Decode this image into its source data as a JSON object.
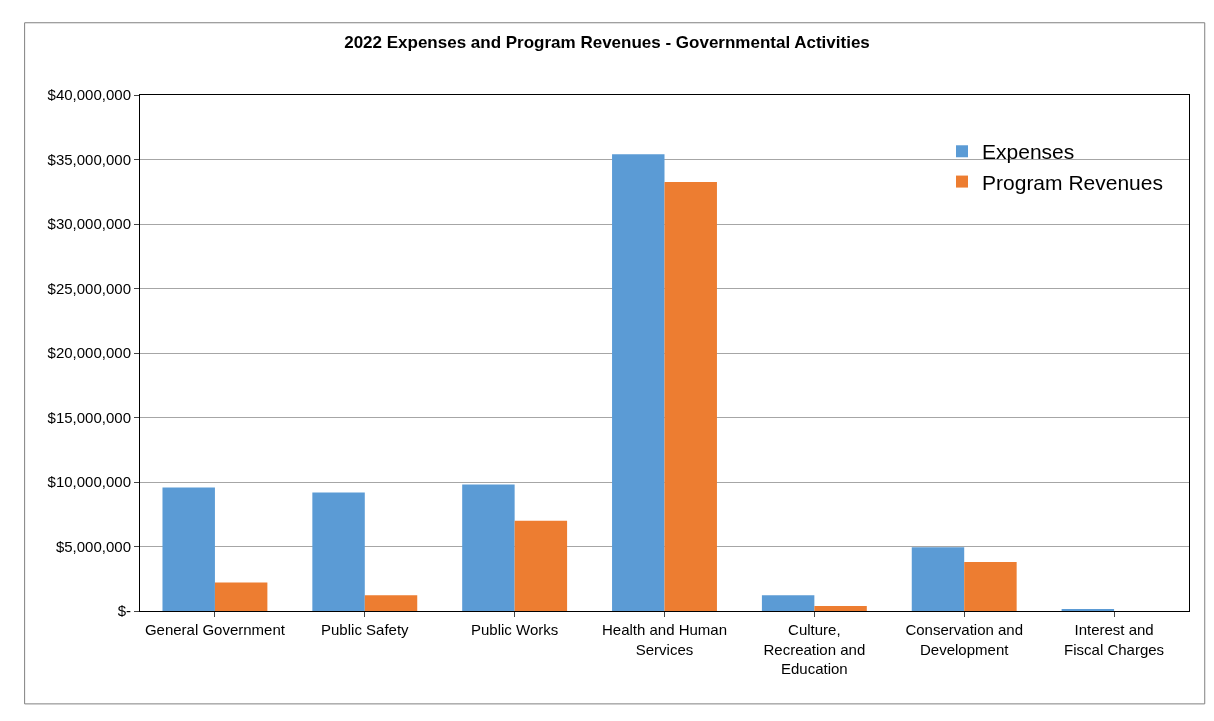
{
  "chart_data": {
    "type": "bar",
    "title": "2022 Expenses and Program Revenues - Governmental Activities",
    "categories": [
      "General Government",
      "Public Safety",
      "Public Works",
      "Health and Human Services",
      "Culture, Recreation and Education",
      "Conservation and Development",
      "Interest and Fiscal Charges"
    ],
    "series": [
      {
        "name": "Expenses",
        "color": "#5b9bd5",
        "values": [
          9580000,
          9190000,
          9800000,
          35400000,
          1230000,
          4950000,
          150000
        ]
      },
      {
        "name": "Program Revenues",
        "color": "#ed7d31",
        "values": [
          2200000,
          1230000,
          7000000,
          33250000,
          390000,
          3800000,
          0
        ]
      }
    ],
    "ylim": [
      0,
      40000000
    ],
    "yticks": [
      {
        "value": 0,
        "label": "$-"
      },
      {
        "value": 5000000,
        "label": "$5,000,000"
      },
      {
        "value": 10000000,
        "label": "$10,000,000"
      },
      {
        "value": 15000000,
        "label": "$15,000,000"
      },
      {
        "value": 20000000,
        "label": "$20,000,000"
      },
      {
        "value": 25000000,
        "label": "$25,000,000"
      },
      {
        "value": 30000000,
        "label": "$30,000,000"
      },
      {
        "value": 35000000,
        "label": "$35,000,000"
      },
      {
        "value": 40000000,
        "label": "$40,000,000"
      }
    ],
    "grid": "y",
    "legend": "top right"
  }
}
